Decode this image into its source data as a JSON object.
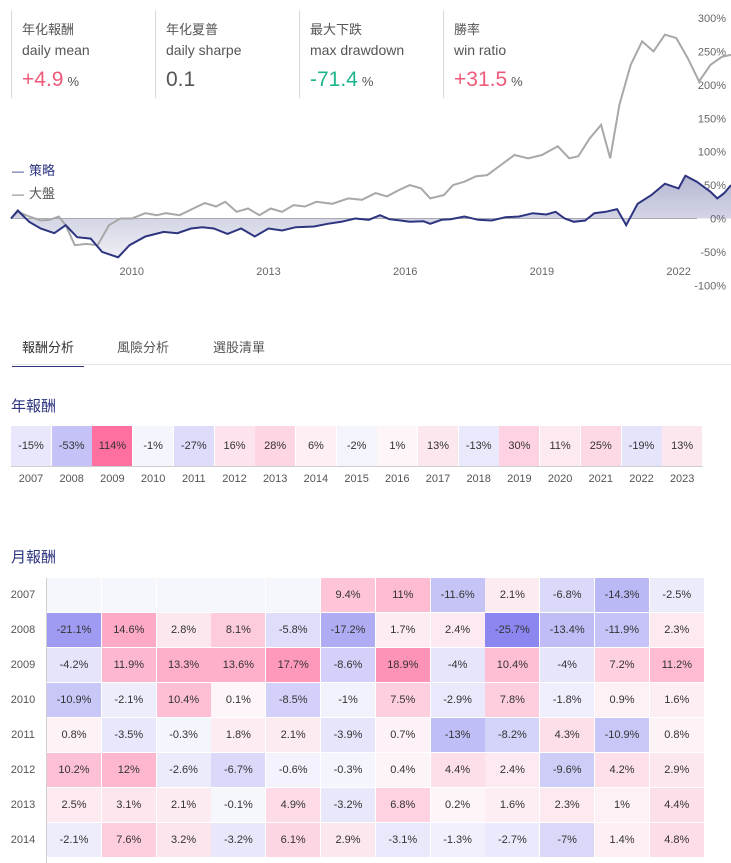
{
  "stats": [
    {
      "zh": "年化報酬",
      "en": "daily mean",
      "value": "+4.9",
      "unit": "%",
      "tone": "pos"
    },
    {
      "zh": "年化夏普",
      "en": "daily sharpe",
      "value": "0.1",
      "unit": "",
      "tone": "neu"
    },
    {
      "zh": "最大下跌",
      "en": "max drawdown",
      "value": "-71.4",
      "unit": "%",
      "tone": "neg"
    },
    {
      "zh": "勝率",
      "en": "win ratio",
      "value": "+31.5",
      "unit": "%",
      "tone": "pos"
    }
  ],
  "colors": {
    "strategy": "#2d3480",
    "benchmark": "#a8a8a8",
    "positive": "#ef5a7a",
    "negative": "#1db58c",
    "heat_pos": "#ff6fa0",
    "heat_neg": "#8c87f0"
  },
  "chart_data": {
    "type": "line",
    "legend": [
      "策略",
      "大盤"
    ],
    "legend_position": "left",
    "x_ticks": [
      "2010",
      "2013",
      "2016",
      "2019",
      "2022"
    ],
    "y_ticks": [
      "300%",
      "250%",
      "200%",
      "150%",
      "100%",
      "50%",
      "0%",
      "-50%",
      "-100%"
    ],
    "ylim": [
      -100,
      300
    ],
    "xlim": [
      2007.35,
      2023.15
    ],
    "series": [
      {
        "name": "策略",
        "points": [
          [
            2007.35,
            0
          ],
          [
            2007.5,
            12
          ],
          [
            2007.75,
            -5
          ],
          [
            2008.0,
            -15
          ],
          [
            2008.3,
            -22
          ],
          [
            2008.55,
            -10
          ],
          [
            2008.8,
            -28
          ],
          [
            2009.1,
            -30
          ],
          [
            2009.35,
            -50
          ],
          [
            2009.7,
            -58
          ],
          [
            2009.95,
            -40
          ],
          [
            2010.3,
            -27
          ],
          [
            2010.7,
            -20
          ],
          [
            2011.0,
            -22
          ],
          [
            2011.3,
            -15
          ],
          [
            2011.55,
            -13
          ],
          [
            2011.8,
            -15
          ],
          [
            2012.1,
            -23
          ],
          [
            2012.4,
            -15
          ],
          [
            2012.7,
            -27
          ],
          [
            2013.0,
            -15
          ],
          [
            2013.3,
            -18
          ],
          [
            2013.6,
            -13
          ],
          [
            2014.0,
            -12
          ],
          [
            2014.3,
            -8
          ],
          [
            2014.6,
            -5
          ],
          [
            2014.9,
            0
          ],
          [
            2015.2,
            -2
          ],
          [
            2015.45,
            5
          ],
          [
            2015.65,
            -1
          ],
          [
            2015.9,
            -3
          ],
          [
            2016.1,
            -5
          ],
          [
            2016.4,
            -4
          ],
          [
            2016.55,
            -8
          ],
          [
            2016.8,
            -2
          ],
          [
            2017.0,
            -1
          ],
          [
            2017.3,
            3
          ],
          [
            2017.6,
            -2
          ],
          [
            2017.9,
            -3
          ],
          [
            2018.2,
            2
          ],
          [
            2018.5,
            3
          ],
          [
            2018.8,
            8
          ],
          [
            2019.1,
            6
          ],
          [
            2019.3,
            10
          ],
          [
            2019.5,
            0
          ],
          [
            2019.7,
            -5
          ],
          [
            2019.95,
            -3
          ],
          [
            2020.15,
            8
          ],
          [
            2020.4,
            10
          ],
          [
            2020.65,
            14
          ],
          [
            2020.85,
            -10
          ],
          [
            2021.1,
            22
          ],
          [
            2021.4,
            35
          ],
          [
            2021.7,
            52
          ],
          [
            2022.0,
            45
          ],
          [
            2022.15,
            64
          ],
          [
            2022.4,
            55
          ],
          [
            2022.7,
            40
          ],
          [
            2022.85,
            30
          ],
          [
            2023.0,
            38
          ],
          [
            2023.15,
            50
          ]
        ]
      },
      {
        "name": "大盤",
        "points": [
          [
            2007.35,
            0
          ],
          [
            2007.5,
            10
          ],
          [
            2007.75,
            3
          ],
          [
            2008.0,
            -3
          ],
          [
            2008.2,
            -2
          ],
          [
            2008.4,
            3
          ],
          [
            2008.55,
            -10
          ],
          [
            2008.75,
            -40
          ],
          [
            2009.0,
            -38
          ],
          [
            2009.25,
            -40
          ],
          [
            2009.5,
            -10
          ],
          [
            2009.75,
            0
          ],
          [
            2010.0,
            0
          ],
          [
            2010.3,
            8
          ],
          [
            2010.55,
            5
          ],
          [
            2010.75,
            8
          ],
          [
            2011.05,
            5
          ],
          [
            2011.35,
            15
          ],
          [
            2011.6,
            23
          ],
          [
            2011.85,
            18
          ],
          [
            2012.05,
            25
          ],
          [
            2012.3,
            10
          ],
          [
            2012.55,
            15
          ],
          [
            2012.8,
            5
          ],
          [
            2013.05,
            15
          ],
          [
            2013.3,
            10
          ],
          [
            2013.55,
            20
          ],
          [
            2013.8,
            18
          ],
          [
            2014.05,
            25
          ],
          [
            2014.4,
            22
          ],
          [
            2014.75,
            30
          ],
          [
            2015.05,
            28
          ],
          [
            2015.35,
            38
          ],
          [
            2015.6,
            33
          ],
          [
            2015.85,
            42
          ],
          [
            2016.1,
            50
          ],
          [
            2016.35,
            45
          ],
          [
            2016.55,
            30
          ],
          [
            2016.85,
            35
          ],
          [
            2017.05,
            50
          ],
          [
            2017.3,
            55
          ],
          [
            2017.55,
            63
          ],
          [
            2017.8,
            65
          ],
          [
            2018.1,
            80
          ],
          [
            2018.4,
            95
          ],
          [
            2018.7,
            90
          ],
          [
            2019.0,
            95
          ],
          [
            2019.35,
            108
          ],
          [
            2019.6,
            90
          ],
          [
            2019.8,
            93
          ],
          [
            2020.05,
            120
          ],
          [
            2020.3,
            140
          ],
          [
            2020.5,
            90
          ],
          [
            2020.7,
            170
          ],
          [
            2020.95,
            230
          ],
          [
            2021.2,
            265
          ],
          [
            2021.45,
            250
          ],
          [
            2021.7,
            275
          ],
          [
            2021.95,
            270
          ],
          [
            2022.2,
            240
          ],
          [
            2022.45,
            205
          ],
          [
            2022.7,
            230
          ],
          [
            2022.95,
            242
          ],
          [
            2023.15,
            245
          ]
        ]
      }
    ]
  },
  "tabs": [
    {
      "label": "報酬分析",
      "active": true
    },
    {
      "label": "風險分析",
      "active": false
    },
    {
      "label": "選股清單",
      "active": false
    }
  ],
  "yearly": {
    "title": "年報酬",
    "years": [
      "2007",
      "2008",
      "2009",
      "2010",
      "2011",
      "2012",
      "2013",
      "2014",
      "2015",
      "2016",
      "2017",
      "2018",
      "2019",
      "2020",
      "2021",
      "2022",
      "2023"
    ],
    "returns": [
      "-15%",
      "-53%",
      "114%",
      "-1%",
      "-27%",
      "16%",
      "28%",
      "6%",
      "-2%",
      "1%",
      "13%",
      "-13%",
      "30%",
      "11%",
      "25%",
      "-19%",
      "13%"
    ],
    "values": [
      -15,
      -53,
      114,
      -1,
      -27,
      16,
      28,
      6,
      -2,
      1,
      13,
      -13,
      30,
      11,
      25,
      -19,
      13
    ]
  },
  "monthly": {
    "title": "月報酬",
    "rows": [
      {
        "year": "2007",
        "cells": [
          "",
          "",
          "",
          "",
          "",
          "9.4%",
          "11%",
          "-11.6%",
          "2.1%",
          "-6.8%",
          "-14.3%",
          "-2.5%"
        ],
        "values": [
          null,
          null,
          null,
          null,
          null,
          9.4,
          11,
          -11.6,
          2.1,
          -6.8,
          -14.3,
          -2.5
        ]
      },
      {
        "year": "2008",
        "cells": [
          "-21.1%",
          "14.6%",
          "2.8%",
          "8.1%",
          "-5.8%",
          "-17.2%",
          "1.7%",
          "2.4%",
          "-25.7%",
          "-13.4%",
          "-11.9%",
          "2.3%"
        ],
        "values": [
          -21.1,
          14.6,
          2.8,
          8.1,
          -5.8,
          -17.2,
          1.7,
          2.4,
          -25.7,
          -13.4,
          -11.9,
          2.3
        ]
      },
      {
        "year": "2009",
        "cells": [
          "-4.2%",
          "11.9%",
          "13.3%",
          "13.6%",
          "17.7%",
          "-8.6%",
          "18.9%",
          "-4%",
          "10.4%",
          "-4%",
          "7.2%",
          "11.2%"
        ],
        "values": [
          -4.2,
          11.9,
          13.3,
          13.6,
          17.7,
          -8.6,
          18.9,
          -4,
          10.4,
          -4,
          7.2,
          11.2
        ]
      },
      {
        "year": "2010",
        "cells": [
          "-10.9%",
          "-2.1%",
          "10.4%",
          "0.1%",
          "-8.5%",
          "-1%",
          "7.5%",
          "-2.9%",
          "7.8%",
          "-1.8%",
          "0.9%",
          "1.6%"
        ],
        "values": [
          -10.9,
          -2.1,
          10.4,
          0.1,
          -8.5,
          -1,
          7.5,
          -2.9,
          7.8,
          -1.8,
          0.9,
          1.6
        ]
      },
      {
        "year": "2011",
        "cells": [
          "0.8%",
          "-3.5%",
          "-0.3%",
          "1.8%",
          "2.1%",
          "-3.9%",
          "0.7%",
          "-13%",
          "-8.2%",
          "4.3%",
          "-10.9%",
          "0.8%"
        ],
        "values": [
          0.8,
          -3.5,
          -0.3,
          1.8,
          2.1,
          -3.9,
          0.7,
          -13,
          -8.2,
          4.3,
          -10.9,
          0.8
        ]
      },
      {
        "year": "2012",
        "cells": [
          "10.2%",
          "12%",
          "-2.6%",
          "-6.7%",
          "-0.6%",
          "-0.3%",
          "0.4%",
          "4.4%",
          "2.4%",
          "-9.6%",
          "4.2%",
          "2.9%"
        ],
        "values": [
          10.2,
          12,
          -2.6,
          -6.7,
          -0.6,
          -0.3,
          0.4,
          4.4,
          2.4,
          -9.6,
          4.2,
          2.9
        ]
      },
      {
        "year": "2013",
        "cells": [
          "2.5%",
          "3.1%",
          "2.1%",
          "-0.1%",
          "4.9%",
          "-3.2%",
          "6.8%",
          "0.2%",
          "1.6%",
          "2.3%",
          "1%",
          "4.4%"
        ],
        "values": [
          2.5,
          3.1,
          2.1,
          -0.1,
          4.9,
          -3.2,
          6.8,
          0.2,
          1.6,
          2.3,
          1,
          4.4
        ]
      },
      {
        "year": "2014",
        "cells": [
          "-2.1%",
          "7.6%",
          "3.2%",
          "-3.2%",
          "6.1%",
          "2.9%",
          "-3.1%",
          "-1.3%",
          "-2.7%",
          "-7%",
          "1.4%",
          "4.8%"
        ],
        "values": [
          -2.1,
          7.6,
          3.2,
          -3.2,
          6.1,
          2.9,
          -3.1,
          -1.3,
          -2.7,
          -7,
          1.4,
          4.8
        ]
      }
    ]
  }
}
